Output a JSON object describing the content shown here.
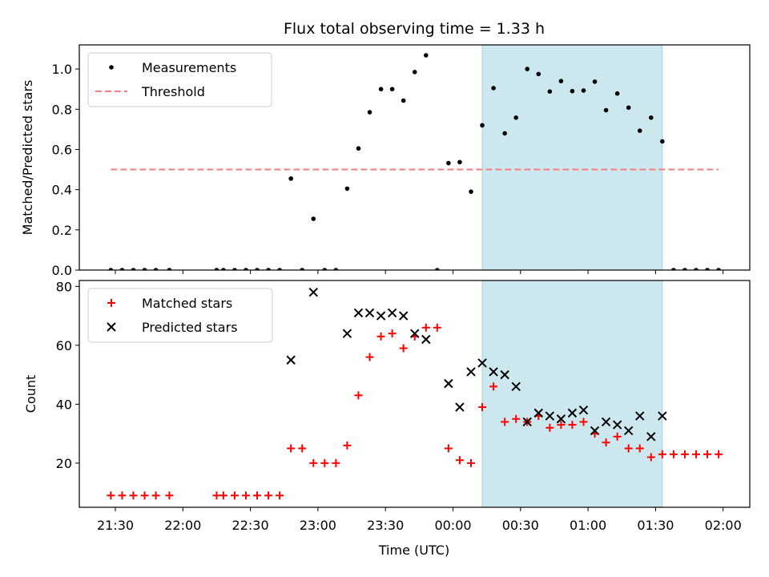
{
  "title": "Flux total observing time = 1.33 h",
  "xlabel": "Time (UTC)",
  "x_ticks": [
    "21:30",
    "22:00",
    "22:30",
    "23:00",
    "23:30",
    "00:00",
    "00:30",
    "01:00",
    "01:30",
    "02:00"
  ],
  "colors": {
    "shade": "#cde7ee",
    "measurement": "#000000",
    "threshold": "#f08080",
    "matched": "#ff0000",
    "predicted": "#000000"
  },
  "chart_data": [
    {
      "type": "scatter",
      "panel": "top",
      "ylabel": "Matched/Predicted stars",
      "ylim": [
        0,
        1.12
      ],
      "y_ticks": [
        "0.0",
        "0.2",
        "0.4",
        "0.6",
        "0.8",
        "1.0"
      ],
      "grid": false,
      "legend": "top-left",
      "shaded_interval": [
        "00:13",
        "01:33"
      ],
      "series": [
        {
          "name": "Measurements",
          "marker": "dot",
          "points": [
            [
              "21:28",
              0.0
            ],
            [
              "21:33",
              0.0
            ],
            [
              "21:38",
              0.0
            ],
            [
              "21:43",
              0.0
            ],
            [
              "21:48",
              0.0
            ],
            [
              "21:54",
              0.0
            ],
            [
              "22:15",
              0.0
            ],
            [
              "22:18",
              0.0
            ],
            [
              "22:23",
              0.0
            ],
            [
              "22:28",
              0.0
            ],
            [
              "22:33",
              0.0
            ],
            [
              "22:38",
              0.0
            ],
            [
              "22:43",
              0.0
            ],
            [
              "22:48",
              0.455
            ],
            [
              "22:53",
              0.0
            ],
            [
              "22:58",
              0.255
            ],
            [
              "23:03",
              0.0
            ],
            [
              "23:08",
              0.0
            ],
            [
              "23:13",
              0.405
            ],
            [
              "23:18",
              0.605
            ],
            [
              "23:23",
              0.785
            ],
            [
              "23:28",
              0.9
            ],
            [
              "23:33",
              0.9
            ],
            [
              "23:38",
              0.843
            ],
            [
              "23:43",
              0.985
            ],
            [
              "23:48",
              1.068
            ],
            [
              "23:53",
              0.0
            ],
            [
              "23:58",
              0.532
            ],
            [
              "00:03",
              0.537
            ],
            [
              "00:08",
              0.39
            ],
            [
              "00:13",
              0.72
            ],
            [
              "00:18",
              0.905
            ],
            [
              "00:23",
              0.68
            ],
            [
              "00:28",
              0.758
            ],
            [
              "00:33",
              1.0
            ],
            [
              "00:38",
              0.975
            ],
            [
              "00:43",
              0.888
            ],
            [
              "00:48",
              0.94
            ],
            [
              "00:53",
              0.89
            ],
            [
              "00:58",
              0.893
            ],
            [
              "01:03",
              0.937
            ],
            [
              "01:08",
              0.795
            ],
            [
              "01:13",
              0.878
            ],
            [
              "01:18",
              0.808
            ],
            [
              "01:23",
              0.693
            ],
            [
              "01:28",
              0.758
            ],
            [
              "01:33",
              0.64
            ],
            [
              "01:38",
              0.0
            ],
            [
              "01:43",
              0.0
            ],
            [
              "01:48",
              0.0
            ],
            [
              "01:53",
              0.0
            ],
            [
              "01:58",
              0.0
            ]
          ]
        },
        {
          "name": "Threshold",
          "marker": "dashed-line",
          "points": [
            [
              "21:28",
              0.5
            ],
            [
              "01:58",
              0.5
            ]
          ]
        }
      ]
    },
    {
      "type": "scatter",
      "panel": "bottom",
      "ylabel": "Count",
      "ylim": [
        5,
        82
      ],
      "y_ticks": [
        "20",
        "40",
        "60",
        "80"
      ],
      "grid": false,
      "legend": "top-left",
      "shaded_interval": [
        "00:13",
        "01:33"
      ],
      "series": [
        {
          "name": "Matched stars",
          "marker": "plus",
          "points": [
            [
              "21:28",
              9
            ],
            [
              "21:33",
              9
            ],
            [
              "21:38",
              9
            ],
            [
              "21:43",
              9
            ],
            [
              "21:48",
              9
            ],
            [
              "21:54",
              9
            ],
            [
              "22:15",
              9
            ],
            [
              "22:18",
              9
            ],
            [
              "22:23",
              9
            ],
            [
              "22:28",
              9
            ],
            [
              "22:33",
              9
            ],
            [
              "22:38",
              9
            ],
            [
              "22:43",
              9
            ],
            [
              "22:48",
              25
            ],
            [
              "22:53",
              25
            ],
            [
              "22:58",
              20
            ],
            [
              "23:03",
              20
            ],
            [
              "23:08",
              20
            ],
            [
              "23:13",
              26
            ],
            [
              "23:18",
              43
            ],
            [
              "23:23",
              56
            ],
            [
              "23:28",
              63
            ],
            [
              "23:33",
              64
            ],
            [
              "23:38",
              59
            ],
            [
              "23:43",
              63
            ],
            [
              "23:48",
              66
            ],
            [
              "23:53",
              66
            ],
            [
              "23:58",
              25
            ],
            [
              "00:03",
              21
            ],
            [
              "00:08",
              20
            ],
            [
              "00:13",
              39
            ],
            [
              "00:18",
              46
            ],
            [
              "00:23",
              34
            ],
            [
              "00:28",
              35
            ],
            [
              "00:33",
              34
            ],
            [
              "00:38",
              36
            ],
            [
              "00:43",
              32
            ],
            [
              "00:48",
              33
            ],
            [
              "00:53",
              33
            ],
            [
              "00:58",
              34
            ],
            [
              "01:03",
              30
            ],
            [
              "01:08",
              27
            ],
            [
              "01:13",
              29
            ],
            [
              "01:18",
              25
            ],
            [
              "01:23",
              25
            ],
            [
              "01:28",
              22
            ],
            [
              "01:33",
              23
            ],
            [
              "01:38",
              23
            ],
            [
              "01:43",
              23
            ],
            [
              "01:48",
              23
            ],
            [
              "01:53",
              23
            ],
            [
              "01:58",
              23
            ]
          ]
        },
        {
          "name": "Predicted stars",
          "marker": "x",
          "points": [
            [
              "22:48",
              55
            ],
            [
              "22:58",
              78
            ],
            [
              "23:13",
              64
            ],
            [
              "23:18",
              71
            ],
            [
              "23:23",
              71
            ],
            [
              "23:28",
              70
            ],
            [
              "23:33",
              71
            ],
            [
              "23:38",
              70
            ],
            [
              "23:43",
              64
            ],
            [
              "23:48",
              62
            ],
            [
              "23:58",
              47
            ],
            [
              "00:03",
              39
            ],
            [
              "00:08",
              51
            ],
            [
              "00:13",
              54
            ],
            [
              "00:18",
              51
            ],
            [
              "00:23",
              50
            ],
            [
              "00:28",
              46
            ],
            [
              "00:33",
              34
            ],
            [
              "00:38",
              37
            ],
            [
              "00:43",
              36
            ],
            [
              "00:48",
              35
            ],
            [
              "00:53",
              37
            ],
            [
              "00:58",
              38
            ],
            [
              "01:03",
              31
            ],
            [
              "01:08",
              34
            ],
            [
              "01:13",
              33
            ],
            [
              "01:18",
              31
            ],
            [
              "01:23",
              36
            ],
            [
              "01:28",
              29
            ],
            [
              "01:33",
              36
            ]
          ]
        }
      ]
    }
  ]
}
